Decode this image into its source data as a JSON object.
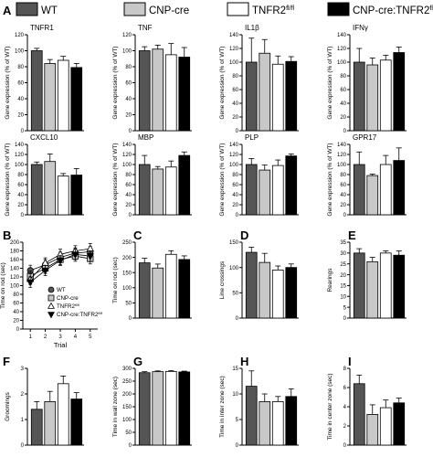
{
  "legend": {
    "panel_label": "A",
    "items": [
      {
        "label": "WT",
        "color": "#555555"
      },
      {
        "label": "CNP-cre",
        "color": "#c8c8c8"
      },
      {
        "label": "TNFR2fl/fl",
        "color": "#ffffff"
      },
      {
        "label": "CNP-cre:TNFR2fl/fl",
        "color": "#000000"
      }
    ]
  },
  "chart_data": [
    {
      "type": "bar",
      "panel": "",
      "title": "TNFR1",
      "ylabel": "Gene expression (% of WT)",
      "ylim": [
        0,
        120
      ],
      "yticks": [
        0,
        20,
        40,
        60,
        80,
        100,
        120
      ],
      "categories": [
        "WT",
        "CNP-cre",
        "TNFR2fl/fl",
        "CNP-cre:TNFR2fl/fl"
      ],
      "values": [
        100,
        84,
        88,
        79
      ],
      "errors": [
        3,
        5,
        5,
        5
      ]
    },
    {
      "type": "bar",
      "panel": "",
      "title": "TNF",
      "ylabel": "Gene expression (% of WT)",
      "ylim": [
        0,
        120
      ],
      "yticks": [
        0,
        20,
        40,
        60,
        80,
        100,
        120
      ],
      "categories": [
        "WT",
        "CNP-cre",
        "TNFR2fl/fl",
        "CNP-cre:TNFR2fl/fl"
      ],
      "values": [
        100,
        102,
        95,
        92
      ],
      "errors": [
        5,
        5,
        14,
        12
      ]
    },
    {
      "type": "bar",
      "panel": "",
      "title": "IL1β",
      "ylabel": "Gene expression (% of WT)",
      "ylim": [
        0,
        140
      ],
      "yticks": [
        0,
        20,
        40,
        60,
        80,
        100,
        120,
        140
      ],
      "categories": [
        "WT",
        "CNP-cre",
        "TNFR2fl/fl",
        "CNP-cre:TNFR2fl/fl"
      ],
      "values": [
        100,
        113,
        97,
        101
      ],
      "errors": [
        35,
        20,
        12,
        7
      ]
    },
    {
      "type": "bar",
      "panel": "",
      "title": "IFNγ",
      "ylabel": "Gene expression (% of WT)",
      "ylim": [
        0,
        140
      ],
      "yticks": [
        0,
        20,
        40,
        60,
        80,
        100,
        120,
        140
      ],
      "categories": [
        "WT",
        "CNP-cre",
        "TNFR2fl/fl",
        "CNP-cre:TNFR2fl/fl"
      ],
      "values": [
        100,
        96,
        103,
        114
      ],
      "errors": [
        20,
        10,
        7,
        8
      ]
    },
    {
      "type": "bar",
      "panel": "",
      "title": "CXCL10",
      "ylabel": "Gene expression (% of WT)",
      "ylim": [
        0,
        140
      ],
      "yticks": [
        0,
        20,
        40,
        60,
        80,
        100,
        120,
        140
      ],
      "categories": [
        "WT",
        "CNP-cre",
        "TNFR2fl/fl",
        "CNP-cre:TNFR2fl/fl"
      ],
      "values": [
        100,
        106,
        77,
        79
      ],
      "errors": [
        5,
        15,
        5,
        13
      ]
    },
    {
      "type": "bar",
      "panel": "",
      "title": "MBP",
      "ylabel": "Gene expression (% of WT)",
      "ylim": [
        0,
        140
      ],
      "yticks": [
        0,
        20,
        40,
        60,
        80,
        100,
        120,
        140
      ],
      "categories": [
        "WT",
        "CNP-cre",
        "TNFR2fl/fl",
        "CNP-cre:TNFR2fl/fl"
      ],
      "values": [
        100,
        91,
        95,
        118
      ],
      "errors": [
        18,
        5,
        12,
        7
      ]
    },
    {
      "type": "bar",
      "panel": "",
      "title": "PLP",
      "ylabel": "Gene expression (% of WT)",
      "ylim": [
        0,
        140
      ],
      "yticks": [
        0,
        20,
        40,
        60,
        80,
        100,
        120,
        140
      ],
      "categories": [
        "WT",
        "CNP-cre",
        "TNFR2fl/fl",
        "CNP-cre:TNFR2fl/fl"
      ],
      "values": [
        100,
        89,
        98,
        117
      ],
      "errors": [
        12,
        10,
        11,
        4
      ]
    },
    {
      "type": "bar",
      "panel": "",
      "title": "GPR17",
      "ylabel": "Gene expression (% of WT)",
      "ylim": [
        0,
        140
      ],
      "yticks": [
        0,
        20,
        40,
        60,
        80,
        100,
        120,
        140
      ],
      "categories": [
        "WT",
        "CNP-cre",
        "TNFR2fl/fl",
        "CNP-cre:TNFR2fl/fl"
      ],
      "values": [
        100,
        78,
        100,
        108
      ],
      "errors": [
        25,
        3,
        18,
        25
      ]
    },
    {
      "type": "line",
      "panel": "B",
      "title": "",
      "xlabel": "Trial",
      "ylabel": "Time on rod (sec)",
      "xlim": [
        0.5,
        5.5
      ],
      "ylim": [
        0,
        200
      ],
      "xticks": [
        1,
        2,
        3,
        4,
        5
      ],
      "yticks": [
        0,
        20,
        40,
        60,
        80,
        100,
        120,
        140,
        160,
        180,
        200
      ],
      "x": [
        1,
        2,
        3,
        4,
        5
      ],
      "series": [
        {
          "name": "WT",
          "marker": "circle",
          "fill": "#555555",
          "values": [
            135,
            148,
            165,
            175,
            178
          ],
          "errors": [
            12,
            12,
            12,
            12,
            12
          ]
        },
        {
          "name": "CNP-cre",
          "marker": "square",
          "fill": "#c8c8c8",
          "values": [
            122,
            140,
            160,
            168,
            162
          ],
          "errors": [
            12,
            12,
            12,
            12,
            12
          ]
        },
        {
          "name": "TNFR2fl/fl",
          "marker": "triangle-up",
          "fill": "#ffffff",
          "values": [
            115,
            152,
            172,
            180,
            185
          ],
          "errors": [
            12,
            12,
            12,
            12,
            12
          ]
        },
        {
          "name": "CNP-cre:TNFR2fl/fl",
          "marker": "triangle-down",
          "fill": "#000000",
          "values": [
            108,
            135,
            158,
            172,
            168
          ],
          "errors": [
            12,
            12,
            12,
            12,
            12
          ]
        }
      ]
    },
    {
      "type": "bar",
      "panel": "C",
      "title": "",
      "ylabel": "Time on rod (sec)",
      "ylim": [
        0,
        250
      ],
      "yticks": [
        0,
        50,
        100,
        150,
        200,
        250
      ],
      "categories": [
        "WT",
        "CNP-cre",
        "TNFR2fl/fl",
        "CNP-cre:TNFR2fl/fl"
      ],
      "values": [
        182,
        165,
        210,
        193
      ],
      "errors": [
        15,
        13,
        12,
        12
      ]
    },
    {
      "type": "bar",
      "panel": "D",
      "title": "",
      "ylabel": "Line crossings",
      "ylim": [
        0,
        150
      ],
      "yticks": [
        0,
        50,
        100,
        150
      ],
      "categories": [
        "WT",
        "CNP-cre",
        "TNFR2fl/fl",
        "CNP-cre:TNFR2fl/fl"
      ],
      "values": [
        130,
        110,
        95,
        100
      ],
      "errors": [
        10,
        18,
        8,
        7
      ]
    },
    {
      "type": "bar",
      "panel": "E",
      "title": "",
      "ylabel": "Rearings",
      "ylim": [
        0,
        35
      ],
      "yticks": [
        0,
        5,
        10,
        15,
        20,
        25,
        30,
        35
      ],
      "categories": [
        "WT",
        "CNP-cre",
        "TNFR2fl/fl",
        "CNP-cre:TNFR2fl/fl"
      ],
      "values": [
        30,
        26,
        30,
        29
      ],
      "errors": [
        2,
        2,
        1,
        2
      ]
    },
    {
      "type": "bar",
      "panel": "F",
      "title": "",
      "ylabel": "Groomings",
      "ylim": [
        0,
        3
      ],
      "yticks": [
        0,
        1,
        2,
        3
      ],
      "categories": [
        "WT",
        "CNP-cre",
        "TNFR2fl/fl",
        "CNP-cre:TNFR2fl/fl"
      ],
      "values": [
        1.4,
        1.7,
        2.4,
        1.8
      ],
      "errors": [
        0.3,
        0.4,
        0.3,
        0.25
      ]
    },
    {
      "type": "bar",
      "panel": "G",
      "title": "",
      "ylabel": "Time in wall zone (sec)",
      "ylim": [
        0,
        300
      ],
      "yticks": [
        0,
        50,
        100,
        150,
        200,
        250,
        300
      ],
      "categories": [
        "WT",
        "CNP-cre",
        "TNFR2fl/fl",
        "CNP-cre:TNFR2fl/fl"
      ],
      "values": [
        283,
        287,
        288,
        286
      ],
      "errors": [
        4,
        3,
        3,
        3
      ]
    },
    {
      "type": "bar",
      "panel": "H",
      "title": "",
      "ylabel": "Time in inter zone (sec)",
      "ylim": [
        0,
        15
      ],
      "yticks": [
        0,
        5,
        10,
        15
      ],
      "categories": [
        "WT",
        "CNP-cre",
        "TNFR2fl/fl",
        "CNP-cre:TNFR2fl/fl"
      ],
      "values": [
        11.5,
        8.5,
        8.5,
        9.5
      ],
      "errors": [
        3,
        1.5,
        1,
        1.5
      ]
    },
    {
      "type": "bar",
      "panel": "I",
      "title": "",
      "ylabel": "Time in center zone (sec)",
      "ylim": [
        0,
        8
      ],
      "yticks": [
        0,
        2,
        4,
        6,
        8
      ],
      "categories": [
        "WT",
        "CNP-cre",
        "TNFR2fl/fl",
        "CNP-cre:TNFR2fl/fl"
      ],
      "values": [
        6.4,
        3.2,
        3.9,
        4.4
      ],
      "errors": [
        0.9,
        1.0,
        0.8,
        0.5
      ]
    }
  ]
}
